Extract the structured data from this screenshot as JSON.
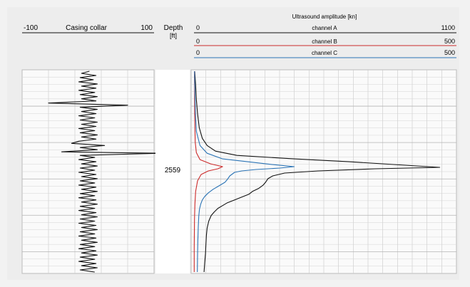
{
  "chart_data": {
    "type": "line",
    "tracks": [
      {
        "scale_min": "-100",
        "scale_label": "Casing collar",
        "scale_max": "100",
        "x_range": [
          -100,
          100
        ],
        "series": [
          {
            "color": "#111111",
            "points": [
              [
                2,
                0
              ],
              [
                -10,
                3
              ],
              [
                12,
                6
              ],
              [
                -12,
                9
              ],
              [
                8,
                12
              ],
              [
                -14,
                15
              ],
              [
                14,
                18
              ],
              [
                -10,
                21
              ],
              [
                12,
                24
              ],
              [
                -14,
                27
              ],
              [
                10,
                30
              ],
              [
                -12,
                33
              ],
              [
                14,
                36
              ],
              [
                -10,
                39
              ],
              [
                12,
                42
              ],
              [
                -60,
                45
              ],
              [
                60,
                48
              ],
              [
                -12,
                51
              ],
              [
                14,
                54
              ],
              [
                -10,
                57
              ],
              [
                12,
                60
              ],
              [
                -14,
                63
              ],
              [
                10,
                66
              ],
              [
                -12,
                69
              ],
              [
                14,
                72
              ],
              [
                -10,
                75
              ],
              [
                12,
                78
              ],
              [
                -14,
                81
              ],
              [
                10,
                84
              ],
              [
                -12,
                87
              ],
              [
                14,
                90
              ],
              [
                -10,
                93
              ],
              [
                12,
                96
              ],
              [
                -14,
                99
              ],
              [
                -25,
                102
              ],
              [
                25,
                105
              ],
              [
                -12,
                108
              ],
              [
                14,
                111
              ],
              [
                -40,
                114
              ],
              [
                110,
                116
              ],
              [
                -12,
                119
              ],
              [
                10,
                122
              ],
              [
                -14,
                125
              ],
              [
                12,
                128
              ],
              [
                -10,
                131
              ],
              [
                14,
                134
              ],
              [
                -12,
                137
              ],
              [
                10,
                140
              ],
              [
                -14,
                143
              ],
              [
                12,
                146
              ],
              [
                -10,
                149
              ],
              [
                14,
                152
              ],
              [
                -12,
                155
              ],
              [
                10,
                158
              ],
              [
                -14,
                161
              ],
              [
                12,
                164
              ],
              [
                -10,
                167
              ],
              [
                14,
                170
              ],
              [
                -12,
                173
              ],
              [
                10,
                176
              ],
              [
                -14,
                179
              ],
              [
                12,
                182
              ],
              [
                -10,
                185
              ],
              [
                14,
                188
              ],
              [
                -12,
                191
              ],
              [
                10,
                194
              ],
              [
                -14,
                197
              ],
              [
                12,
                200
              ],
              [
                -10,
                203
              ],
              [
                14,
                206
              ],
              [
                -12,
                209
              ],
              [
                10,
                212
              ],
              [
                -14,
                215
              ],
              [
                12,
                218
              ],
              [
                -10,
                221
              ],
              [
                14,
                224
              ],
              [
                -12,
                227
              ],
              [
                10,
                230
              ],
              [
                -14,
                233
              ],
              [
                12,
                236
              ],
              [
                -10,
                239
              ],
              [
                14,
                242
              ],
              [
                -12,
                245
              ],
              [
                10,
                248
              ],
              [
                -14,
                251
              ],
              [
                12,
                254
              ],
              [
                -10,
                257
              ],
              [
                14,
                260
              ],
              [
                -12,
                263
              ],
              [
                10,
                266
              ],
              [
                -14,
                269
              ],
              [
                12,
                272
              ],
              [
                -10,
                275
              ],
              [
                14,
                278
              ],
              [
                -12,
                281
              ],
              [
                10,
                284
              ]
            ]
          }
        ]
      },
      {
        "title": "Ultrasound amplitude [kn]",
        "channels": [
          {
            "min": "0",
            "name": "channel A",
            "max": "1100",
            "color": "#111111"
          },
          {
            "min": "0",
            "name": "channel B",
            "max": "500",
            "color": "#cc2a2a"
          },
          {
            "min": "0",
            "name": "channel C",
            "max": "500",
            "color": "#2a73b5"
          }
        ],
        "x_range": [
          0,
          1100
        ],
        "series": [
          {
            "name": "channel A",
            "color": "#111111",
            "points": [
              [
                3,
                0
              ],
              [
                7,
                20
              ],
              [
                10,
                40
              ],
              [
                15,
                60
              ],
              [
                22,
                80
              ],
              [
                35,
                95
              ],
              [
                55,
                105
              ],
              [
                90,
                113
              ],
              [
                180,
                119
              ],
              [
                420,
                124
              ],
              [
                650,
                128
              ],
              [
                1030,
                136
              ],
              [
                760,
                138
              ],
              [
                520,
                141
              ],
              [
                380,
                144
              ],
              [
                330,
                148
              ],
              [
                310,
                152
              ],
              [
                300,
                157
              ],
              [
                290,
                161
              ],
              [
                270,
                166
              ],
              [
                245,
                170
              ],
              [
                230,
                174
              ],
              [
                200,
                178
              ],
              [
                170,
                182
              ],
              [
                140,
                186
              ],
              [
                120,
                190
              ],
              [
                100,
                194
              ],
              [
                85,
                199
              ],
              [
                72,
                204
              ],
              [
                62,
                212
              ],
              [
                55,
                222
              ],
              [
                52,
                232
              ],
              [
                50,
                245
              ],
              [
                48,
                258
              ],
              [
                45,
                270
              ],
              [
                42,
                284
              ]
            ]
          },
          {
            "name": "channel B",
            "color": "#cc2a2a",
            "points": [
              [
                2,
                0
              ],
              [
                3,
                60
              ],
              [
                5,
                100
              ],
              [
                10,
                115
              ],
              [
                25,
                125
              ],
              [
                70,
                131
              ],
              [
                120,
                135
              ],
              [
                100,
                138
              ],
              [
                60,
                141
              ],
              [
                30,
                146
              ],
              [
                15,
                155
              ],
              [
                7,
                170
              ],
              [
                4,
                188
              ],
              [
                2,
                210
              ],
              [
                1,
                250
              ],
              [
                1,
                284
              ]
            ]
          },
          {
            "name": "channel C",
            "color": "#2a73b5",
            "points": [
              [
                2,
                0
              ],
              [
                4,
                30
              ],
              [
                6,
                60
              ],
              [
                10,
                85
              ],
              [
                25,
                105
              ],
              [
                55,
                116
              ],
              [
                120,
                124
              ],
              [
                330,
                132
              ],
              [
                420,
                135
              ],
              [
                360,
                137
              ],
              [
                260,
                139
              ],
              [
                200,
                141
              ],
              [
                170,
                143
              ],
              [
                150,
                148
              ],
              [
                140,
                153
              ],
              [
                130,
                157
              ],
              [
                115,
                160
              ],
              [
                100,
                163
              ],
              [
                80,
                167
              ],
              [
                60,
                172
              ],
              [
                45,
                177
              ],
              [
                35,
                182
              ],
              [
                28,
                188
              ],
              [
                23,
                195
              ],
              [
                20,
                205
              ],
              [
                18,
                220
              ],
              [
                16,
                240
              ],
              [
                15,
                260
              ],
              [
                14,
                284
              ]
            ]
          }
        ]
      }
    ],
    "depth_header": "Depth",
    "depth_unit": "[ft]",
    "depth_marker": "2559",
    "grid": true
  }
}
